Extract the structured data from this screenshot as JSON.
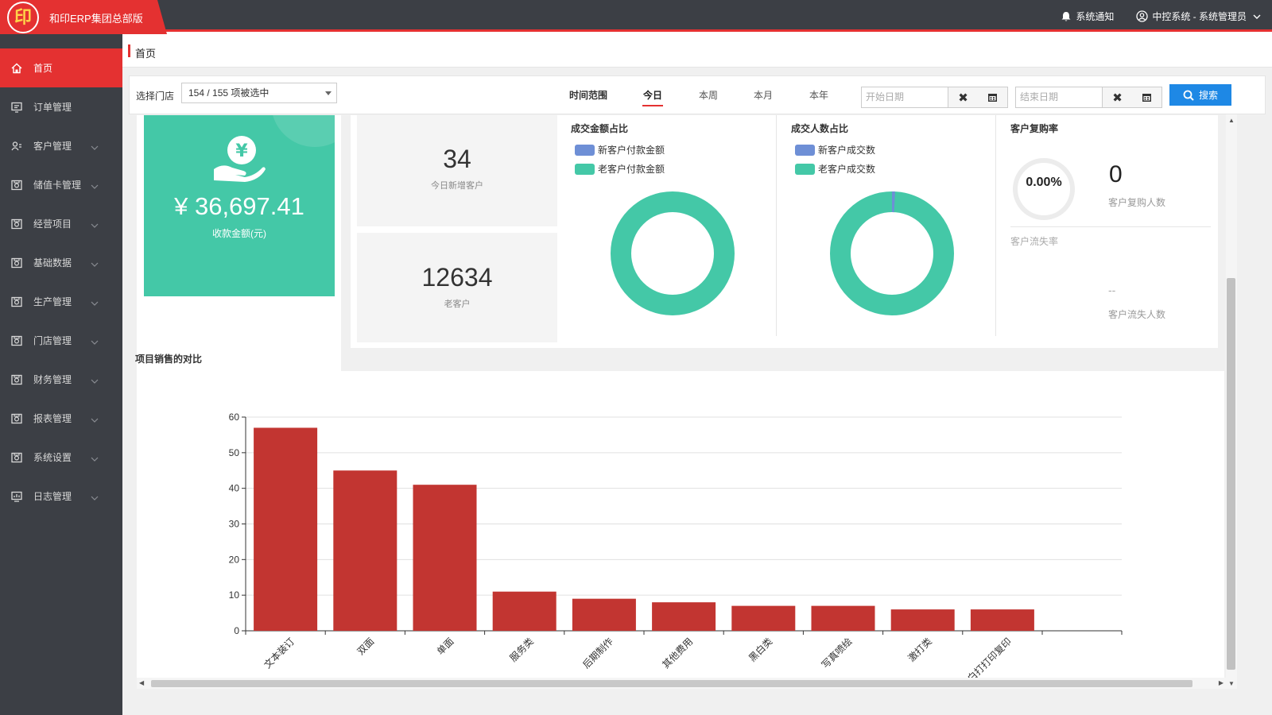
{
  "app": {
    "title": "和印ERP集团总部版",
    "logo_text": "印",
    "notifications": "系统通知",
    "user": "中控系统 - 系统管理员"
  },
  "sidebar": {
    "items": [
      {
        "label": "首页",
        "icon": "home-icon",
        "active": true
      },
      {
        "label": "订单管理",
        "icon": "order-icon"
      },
      {
        "label": "客户管理",
        "icon": "customer-icon"
      },
      {
        "label": "储值卡管理",
        "icon": "card-icon"
      },
      {
        "label": "经营项目",
        "icon": "project-icon"
      },
      {
        "label": "基础数据",
        "icon": "data-icon"
      },
      {
        "label": "生产管理",
        "icon": "production-icon"
      },
      {
        "label": "门店管理",
        "icon": "store-icon"
      },
      {
        "label": "财务管理",
        "icon": "finance-icon"
      },
      {
        "label": "报表管理",
        "icon": "report-icon"
      },
      {
        "label": "系统设置",
        "icon": "settings-icon"
      },
      {
        "label": "日志管理",
        "icon": "log-icon"
      }
    ]
  },
  "breadcrumb": {
    "current": "首页"
  },
  "filter": {
    "store_label": "选择门店",
    "store_value": "154 / 155 项被选中",
    "time_label": "时间范围",
    "tabs": [
      "今日",
      "本周",
      "本月",
      "本年"
    ],
    "active_tab": "今日",
    "start_placeholder": "开始日期",
    "end_placeholder": "结束日期",
    "search_label": "搜索",
    "clear_glyph": "✖"
  },
  "stats": {
    "amount": "¥ 36,697.41",
    "amount_caption": "收款金额(元)",
    "new_customers_today": "34",
    "new_customers_caption": "今日新增客户",
    "old_customers": "12634",
    "old_customers_caption": "老客户"
  },
  "donut_amount": {
    "title": "成交金额占比",
    "legend": [
      "新客户付款金额",
      "老客户付款金额"
    ],
    "values": [
      0,
      100
    ]
  },
  "donut_count": {
    "title": "成交人数占比",
    "legend": [
      "新客户成交数",
      "老客户成交数"
    ],
    "values": [
      0.8,
      99.2
    ]
  },
  "repurchase": {
    "title": "客户复购率",
    "rate": "0.00%",
    "repurchase_count": "0",
    "repurchase_caption": "客户复购人数",
    "churn_rate_caption": "客户流失率",
    "churn_count": "--",
    "churn_caption": "客户流失人数"
  },
  "colors": {
    "accent": "#e43131",
    "teal": "#44c8a7",
    "blue": "#6e8fd6",
    "bar": "#c23531",
    "sidebar": "#3c3f45"
  },
  "chart_data": {
    "type": "bar",
    "title": "项目销售的对比",
    "categories": [
      "文本装订",
      "双面",
      "单面",
      "服务类",
      "后期制作",
      "其他费用",
      "黑白类",
      "写真喷绘",
      "激打类",
      "黑白打打印复印"
    ],
    "values": [
      57,
      45,
      41,
      11,
      9,
      8,
      7,
      7,
      6,
      6
    ],
    "ylim": [
      0,
      60
    ],
    "yticks": [
      0,
      10,
      20,
      30,
      40,
      50,
      60
    ],
    "xlabel": "",
    "ylabel": "",
    "grid": true
  }
}
